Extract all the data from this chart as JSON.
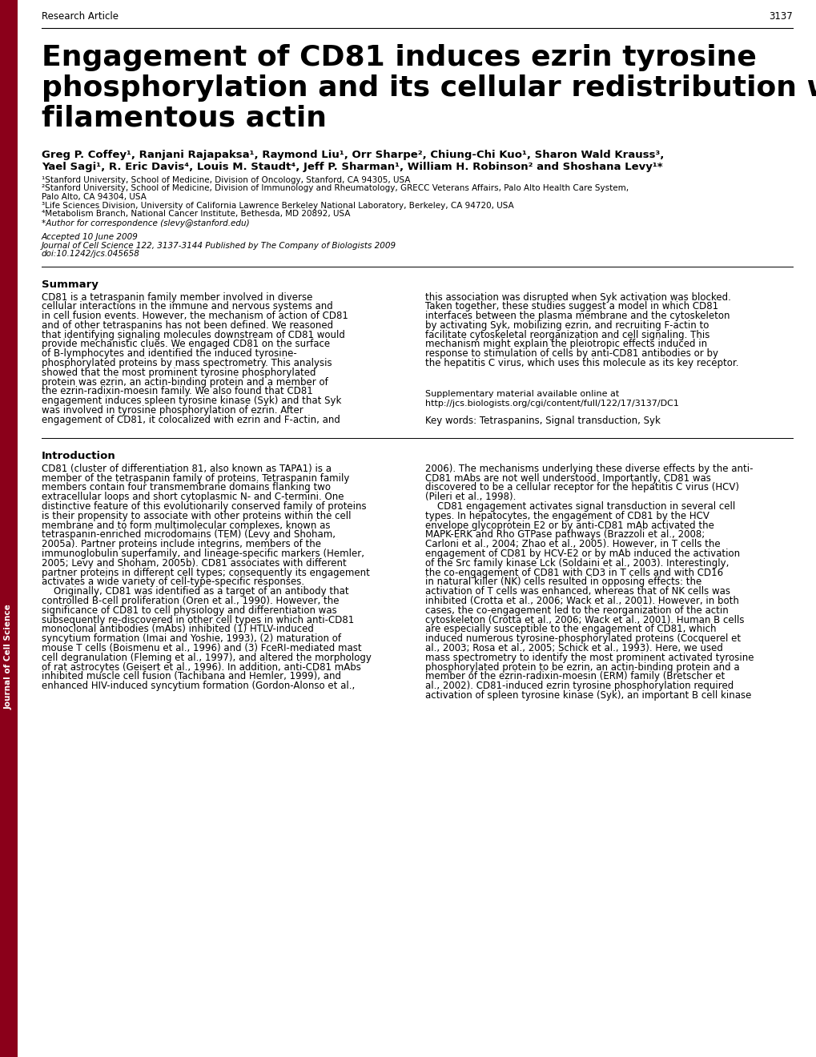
{
  "bg_color": "#ffffff",
  "sidebar_color": "#8B001A",
  "sidebar_text": "Journal of Cell Science",
  "header_label": "Research Article",
  "page_number": "3137",
  "title_line1": "Engagement of CD81 induces ezrin tyrosine",
  "title_line2": "phosphorylation and its cellular redistribution with",
  "title_line3": "filamentous actin",
  "authors_line1": "Greg P. Coffey¹, Ranjani Rajapaksa¹, Raymond Liu¹, Orr Sharpe², Chiung-Chi Kuo¹, Sharon Wald Krauss³,",
  "authors_line2": "Yael Sagi¹, R. Eric Davis⁴, Louis M. Staudt⁴, Jeff P. Sharman¹, William H. Robinson² and Shoshana Levy¹*",
  "aff1": "¹Stanford University, School of Medicine, Division of Oncology, Stanford, CA 94305, USA",
  "aff2a": "²Stanford University, School of Medicine, Division of Immunology and Rheumatology, GRECC Veterans Affairs, Palo Alto Health Care System,",
  "aff2b": "Palo Alto, CA 94304, USA",
  "aff3": "³Life Sciences Division, University of California Lawrence Berkeley National Laboratory, Berkeley, CA 94720, USA",
  "aff4": "⁴Metabolism Branch, National Cancer Institute, Bethesda, MD 20892, USA",
  "correspondence": "*Author for correspondence (slevy@stanford.edu)",
  "journal_info_line1": "Accepted 10 June 2009",
  "journal_info_line2": "Journal of Cell Science 122, 3137-3144 Published by The Company of Biologists 2009",
  "journal_info_line3": "doi:10.1242/jcs.045658",
  "summary_title": "Summary",
  "summary_col1_lines": [
    "CD81 is a tetraspanin family member involved in diverse",
    "cellular interactions in the immune and nervous systems and",
    "in cell fusion events. However, the mechanism of action of CD81",
    "and of other tetraspanins has not been defined. We reasoned",
    "that identifying signaling molecules downstream of CD81 would",
    "provide mechanistic clues. We engaged CD81 on the surface",
    "of B-lymphocytes and identified the induced tyrosine-",
    "phosphorylated proteins by mass spectrometry. This analysis",
    "showed that the most prominent tyrosine phosphorylated",
    "protein was ezrin, an actin-binding protein and a member of",
    "the ezrin-radixin-moesin family. We also found that CD81",
    "engagement induces spleen tyrosine kinase (Syk) and that Syk",
    "was involved in tyrosine phosphorylation of ezrin. After",
    "engagement of CD81, it colocalized with ezrin and F-actin, and"
  ],
  "summary_col2_lines": [
    "this association was disrupted when Syk activation was blocked.",
    "Taken together, these studies suggest a model in which CD81",
    "interfaces between the plasma membrane and the cytoskeleton",
    "by activating Syk, mobilizing ezrin, and recruiting F-actin to",
    "facilitate cytoskeletal reorganization and cell signaling. This",
    "mechanism might explain the pleiotropic effects induced in",
    "response to stimulation of cells by anti-CD81 antibodies or by",
    "the hepatitis C virus, which uses this molecule as its key receptor."
  ],
  "supplementary_line1": "Supplementary material available online at",
  "supplementary_line2": "http://jcs.biologists.org/cgi/content/full/122/17/3137/DC1",
  "keywords": "Key words: Tetraspanins, Signal transduction, Syk",
  "intro_title": "Introduction",
  "intro_col1_lines": [
    "CD81 (cluster of differentiation 81, also known as TAPA1) is a",
    "member of the tetraspanin family of proteins. Tetraspanin family",
    "members contain four transmembrane domains flanking two",
    "extracellular loops and short cytoplasmic N- and C-termini. One",
    "distinctive feature of this evolutionarily conserved family of proteins",
    "is their propensity to associate with other proteins within the cell",
    "membrane and to form multimolecular complexes, known as",
    "tetraspanin-enriched microdomains (TEM) (Levy and Shoham,",
    "2005a). Partner proteins include integrins, members of the",
    "immunoglobulin superfamily, and lineage-specific markers (Hemler,",
    "2005; Levy and Shoham, 2005b). CD81 associates with different",
    "partner proteins in different cell types; consequently its engagement",
    "activates a wide variety of cell-type-specific responses.",
    "    Originally, CD81 was identified as a target of an antibody that",
    "controlled B-cell proliferation (Oren et al., 1990). However, the",
    "significance of CD81 to cell physiology and differentiation was",
    "subsequently re-discovered in other cell types in which anti-CD81",
    "monoclonal antibodies (mAbs) inhibited (1) HTLV-induced",
    "syncytium formation (Imai and Yoshie, 1993), (2) maturation of",
    "mouse T cells (Boismenu et al., 1996) and (3) FceRI-mediated mast",
    "cell degranulation (Fleming et al., 1997), and altered the morphology",
    "of rat astrocytes (Geisert et al., 1996). In addition, anti-CD81 mAbs",
    "inhibited muscle cell fusion (Tachibana and Hemler, 1999), and",
    "enhanced HIV-induced syncytium formation (Gordon-Alonso et al.,"
  ],
  "intro_col2_lines": [
    "2006). The mechanisms underlying these diverse effects by the anti-",
    "CD81 mAbs are not well understood. Importantly, CD81 was",
    "discovered to be a cellular receptor for the hepatitis C virus (HCV)",
    "(Pileri et al., 1998).",
    "    CD81 engagement activates signal transduction in several cell",
    "types. In hepatocytes, the engagement of CD81 by the HCV",
    "envelope glycoprotein E2 or by anti-CD81 mAb activated the",
    "MAPK-ERK and Rho GTPase pathways (Brazzoli et al., 2008;",
    "Carloni et al., 2004; Zhao et al., 2005). However, in T cells the",
    "engagement of CD81 by HCV-E2 or by mAb induced the activation",
    "of the Src family kinase Lck (Soldaini et al., 2003). Interestingly,",
    "the co-engagement of CD81 with CD3 in T cells and with CD16",
    "in natural killer (NK) cells resulted in opposing effects: the",
    "activation of T cells was enhanced, whereas that of NK cells was",
    "inhibited (Crotta et al., 2006; Wack et al., 2001). However, in both",
    "cases, the co-engagement led to the reorganization of the actin",
    "cytoskeleton (Crotta et al., 2006; Wack et al., 2001). Human B cells",
    "are especially susceptible to the engagement of CD81, which",
    "induced numerous tyrosine-phosphorylated proteins (Cocquerel et",
    "al., 2003; Rosa et al., 2005; Schick et al., 1993). Here, we used",
    "mass spectrometry to identify the most prominent activated tyrosine",
    "phosphorylated protein to be ezrin, an actin-binding protein and a",
    "member of the ezrin-radixin-moesin (ERM) family (Bretscher et",
    "al., 2002). CD81-induced ezrin tyrosine phosphorylation required",
    "activation of spleen tyrosine kinase (Syk), an important B cell kinase"
  ]
}
